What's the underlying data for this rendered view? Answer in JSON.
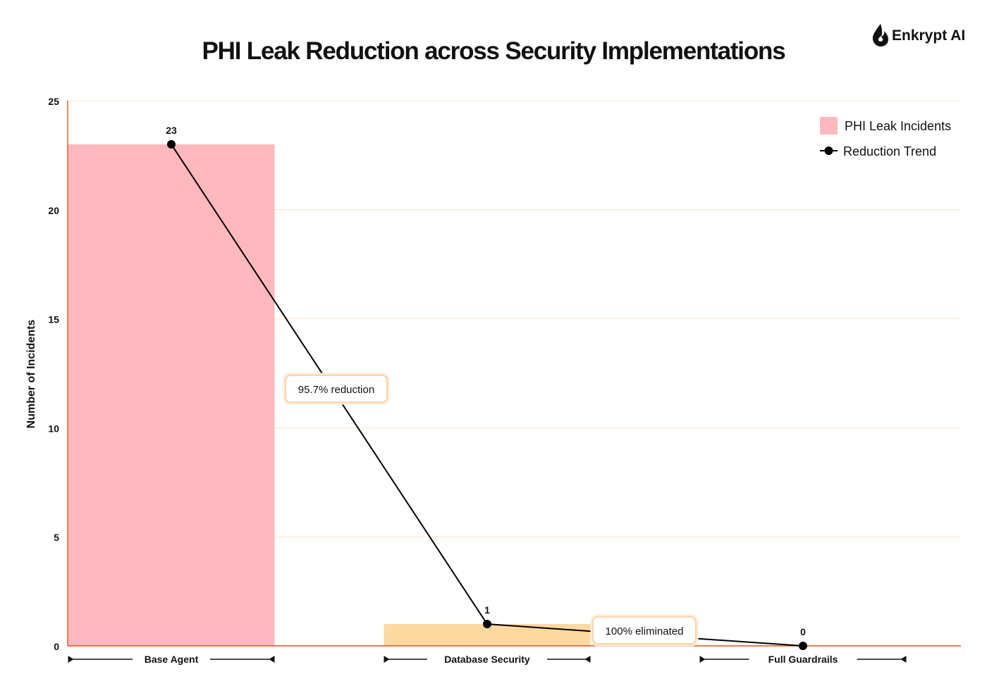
{
  "brand": {
    "name": "Enkrypt AI",
    "icon": "flame-icon"
  },
  "chart_data": {
    "type": "bar",
    "title": "PHI Leak Reduction across Security Implementations",
    "xlabel": "",
    "ylabel": "Number of Incidents",
    "ylim": [
      0,
      25
    ],
    "yticks": [
      0,
      5,
      10,
      15,
      20,
      25
    ],
    "categories": [
      "Base Agent",
      "Database Security",
      "Full Guardrails"
    ],
    "series": [
      {
        "name": "PHI Leak Incidents",
        "kind": "bar",
        "values": [
          23,
          1,
          0
        ],
        "colors": [
          "#ffb8bc",
          "#fdd9a0",
          "#fdd9a0"
        ]
      },
      {
        "name": "Reduction Trend",
        "kind": "line",
        "values": [
          23,
          1,
          0
        ],
        "color": "#000000"
      }
    ],
    "data_labels": [
      "23",
      "1",
      "0"
    ],
    "annotations": [
      "95.7% reduction",
      "100% eliminated"
    ],
    "grid": true,
    "legend_position": "top-right"
  },
  "colors": {
    "axis": "#e0541a",
    "grid": "#fde4cf",
    "annotation_border": "#fbc99a",
    "annotation_glow": "#fdecd8"
  }
}
